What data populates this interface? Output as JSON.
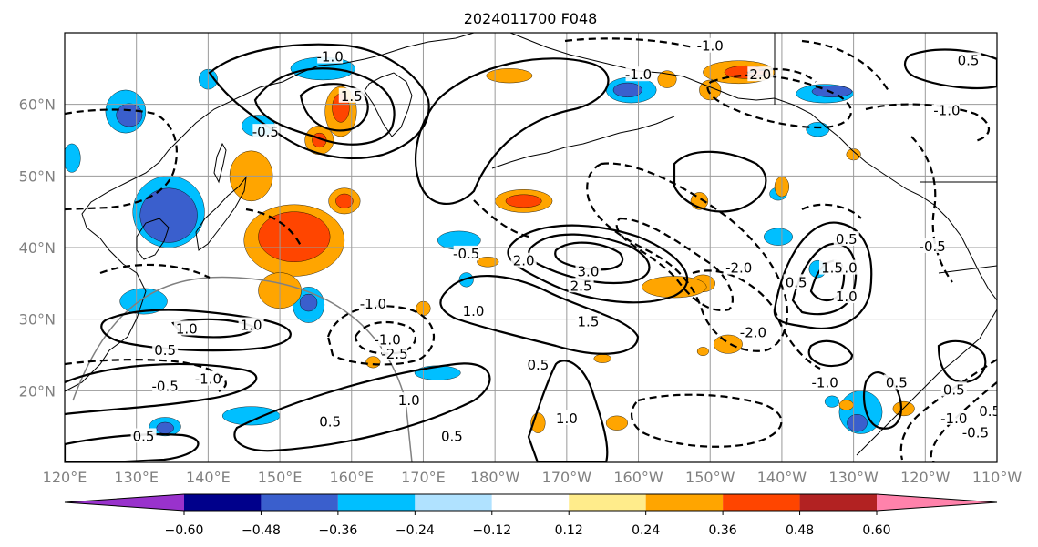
{
  "title": "2024011700 F048",
  "map": {
    "lat_range": [
      10,
      70
    ],
    "lon_range": [
      120,
      250
    ],
    "lat_ticks": [
      "20°N",
      "30°N",
      "40°N",
      "50°N",
      "60°N"
    ],
    "lon_ticks": [
      "120°E",
      "130°E",
      "140°E",
      "150°E",
      "160°E",
      "170°E",
      "180°W",
      "170°W",
      "160°W",
      "150°W",
      "140°W",
      "130°W",
      "120°W",
      "110°W"
    ],
    "gridlines": true,
    "projection": "PlateCarree"
  },
  "colorbar": {
    "orientation": "horizontal",
    "extend": "both",
    "tick_labels": [
      "−0.60",
      "−0.48",
      "−0.36",
      "−0.24",
      "−0.12",
      "0.12",
      "0.24",
      "0.36",
      "0.48",
      "0.60"
    ],
    "colors": [
      "#9932CC",
      "#00008B",
      "#3A5FCD",
      "#00BFFF",
      "#B0E2FF",
      "#FFFFFF",
      "#FFEC8B",
      "#FFA500",
      "#FF4500",
      "#B22222",
      "#FF82AB"
    ]
  },
  "contour_labels": [
    {
      "text": "-1.0",
      "lon": 157,
      "lat": 66.5
    },
    {
      "text": "-0.5",
      "lon": 148,
      "lat": 56
    },
    {
      "text": "-0.5",
      "lon": 176,
      "lat": 39
    },
    {
      "text": "-1.0",
      "lon": 163,
      "lat": 32
    },
    {
      "text": "-1.0",
      "lon": 165,
      "lat": 27
    },
    {
      "text": "-2.5",
      "lon": 166,
      "lat": 25
    },
    {
      "text": "-1.0",
      "lon": 140,
      "lat": 21.5
    },
    {
      "text": "-0.5",
      "lon": 134,
      "lat": 20.5
    },
    {
      "text": "-1.0",
      "lon": 200,
      "lat": 64
    },
    {
      "text": "-1.0",
      "lon": 210,
      "lat": 68
    },
    {
      "text": "-2.0",
      "lon": 214,
      "lat": 37
    },
    {
      "text": "-2.0",
      "lon": 216,
      "lat": 28
    },
    {
      "text": "-1.0",
      "lon": 226,
      "lat": 21
    },
    {
      "text": "-1.0",
      "lon": 243,
      "lat": 59
    },
    {
      "text": "-1.0",
      "lon": 244,
      "lat": 16
    },
    {
      "text": "-0.5",
      "lon": 247,
      "lat": 14
    },
    {
      "text": "-0.5",
      "lon": 241,
      "lat": 40
    },
    {
      "text": "1.0",
      "lon": 146,
      "lat": 29
    },
    {
      "text": "0.5",
      "lon": 134,
      "lat": 25.5
    },
    {
      "text": "1.0",
      "lon": 137,
      "lat": 28.5
    },
    {
      "text": "1.0",
      "lon": 168,
      "lat": 18.5
    },
    {
      "text": "0.5",
      "lon": 157,
      "lat": 15.5
    },
    {
      "text": "0.5",
      "lon": 174,
      "lat": 13.5
    },
    {
      "text": "0.5",
      "lon": 131,
      "lat": 13.5
    },
    {
      "text": "1.0",
      "lon": 177,
      "lat": 31
    },
    {
      "text": "1.5",
      "lon": 193,
      "lat": 29.5
    },
    {
      "text": "3.0",
      "lon": 193,
      "lat": 36.5
    },
    {
      "text": "2.5",
      "lon": 192,
      "lat": 34.5
    },
    {
      "text": "2.0",
      "lon": 184,
      "lat": 38
    },
    {
      "text": "1.0",
      "lon": 190,
      "lat": 16
    },
    {
      "text": "0.5",
      "lon": 186,
      "lat": 23.5
    },
    {
      "text": "2.0",
      "lon": 217,
      "lat": 64
    },
    {
      "text": "0.5",
      "lon": 246,
      "lat": 66
    },
    {
      "text": "0.5",
      "lon": 229,
      "lat": 41
    },
    {
      "text": "0.5",
      "lon": 222,
      "lat": 35
    },
    {
      "text": "2.0",
      "lon": 229,
      "lat": 37
    },
    {
      "text": "1.0",
      "lon": 229,
      "lat": 33
    },
    {
      "text": "1.5",
      "lon": 227,
      "lat": 37
    },
    {
      "text": "0.5",
      "lon": 236,
      "lat": 21
    },
    {
      "text": "0.5",
      "lon": 244,
      "lat": 20
    },
    {
      "text": "0.5",
      "lon": 249,
      "lat": 17
    },
    {
      "text": "1.5",
      "lon": 160,
      "lat": 61
    }
  ],
  "shaded_regions": [
    {
      "color": "#00BFFF",
      "lon": 156,
      "lat": 65,
      "rx": 4.5,
      "ry": 1.6
    },
    {
      "color": "#00BFFF",
      "lon": 140,
      "lat": 63.5,
      "rx": 1.3,
      "ry": 1.4
    },
    {
      "color": "#00BFFF",
      "lon": 128.5,
      "lat": 59,
      "rx": 2.8,
      "ry": 3
    },
    {
      "color": "#3A5FCD",
      "lon": 129,
      "lat": 58.5,
      "rx": 1.8,
      "ry": 1.6
    },
    {
      "color": "#00BFFF",
      "lon": 147,
      "lat": 57,
      "rx": 2.3,
      "ry": 1.5
    },
    {
      "color": "#00BFFF",
      "lon": 121,
      "lat": 52.5,
      "rx": 1.2,
      "ry": 2
    },
    {
      "color": "#00BFFF",
      "lon": 134.5,
      "lat": 45,
      "rx": 5,
      "ry": 5
    },
    {
      "color": "#3A5FCD",
      "lon": 134.5,
      "lat": 44.5,
      "rx": 4,
      "ry": 3.8
    },
    {
      "color": "#00BFFF",
      "lon": 131,
      "lat": 32.5,
      "rx": 3.3,
      "ry": 1.8
    },
    {
      "color": "#00BFFF",
      "lon": 154,
      "lat": 32,
      "rx": 2.2,
      "ry": 2.5
    },
    {
      "color": "#3A5FCD",
      "lon": 154,
      "lat": 32.3,
      "rx": 1.2,
      "ry": 1.2
    },
    {
      "color": "#00BFFF",
      "lon": 175,
      "lat": 41,
      "rx": 3,
      "ry": 1.3
    },
    {
      "color": "#00BFFF",
      "lon": 176,
      "lat": 35.5,
      "rx": 1,
      "ry": 1
    },
    {
      "color": "#00BFFF",
      "lon": 172,
      "lat": 22.5,
      "rx": 3.2,
      "ry": 1
    },
    {
      "color": "#00BFFF",
      "lon": 146,
      "lat": 16.5,
      "rx": 4,
      "ry": 1.3
    },
    {
      "color": "#00BFFF",
      "lon": 134,
      "lat": 15,
      "rx": 2.2,
      "ry": 1.3
    },
    {
      "color": "#3A5FCD",
      "lon": 134,
      "lat": 14.8,
      "rx": 1.2,
      "ry": 0.8
    },
    {
      "color": "#00BFFF",
      "lon": 199,
      "lat": 62,
      "rx": 3.5,
      "ry": 1.8
    },
    {
      "color": "#3A5FCD",
      "lon": 198.5,
      "lat": 62,
      "rx": 2,
      "ry": 1
    },
    {
      "color": "#00BFFF",
      "lon": 226,
      "lat": 61.5,
      "rx": 4,
      "ry": 1.3
    },
    {
      "color": "#3A5FCD",
      "lon": 227,
      "lat": 61.8,
      "rx": 2.8,
      "ry": 0.8
    },
    {
      "color": "#00BFFF",
      "lon": 225,
      "lat": 56.5,
      "rx": 1.6,
      "ry": 1
    },
    {
      "color": "#00BFFF",
      "lon": 219.5,
      "lat": 47.5,
      "rx": 1.2,
      "ry": 0.9
    },
    {
      "color": "#00BFFF",
      "lon": 219.5,
      "lat": 41.5,
      "rx": 2,
      "ry": 1.2
    },
    {
      "color": "#00BFFF",
      "lon": 225,
      "lat": 37,
      "rx": 1.2,
      "ry": 1.2
    },
    {
      "color": "#00BFFF",
      "lon": 231,
      "lat": 17,
      "rx": 3,
      "ry": 3
    },
    {
      "color": "#3A5FCD",
      "lon": 230.5,
      "lat": 15.5,
      "rx": 1.4,
      "ry": 1.2
    },
    {
      "color": "#00BFFF",
      "lon": 227,
      "lat": 18.5,
      "rx": 1,
      "ry": 0.8
    },
    {
      "color": "#FFA500",
      "lon": 158.5,
      "lat": 59,
      "rx": 2.2,
      "ry": 3.5
    },
    {
      "color": "#FF4500",
      "lon": 158.5,
      "lat": 59.5,
      "rx": 1.2,
      "ry": 2
    },
    {
      "color": "#FFA500",
      "lon": 155.5,
      "lat": 55,
      "rx": 2,
      "ry": 2
    },
    {
      "color": "#FF4500",
      "lon": 155.5,
      "lat": 55,
      "rx": 1,
      "ry": 1
    },
    {
      "color": "#FFA500",
      "lon": 182,
      "lat": 64,
      "rx": 3.2,
      "ry": 1
    },
    {
      "color": "#FFA500",
      "lon": 146,
      "lat": 50,
      "rx": 3,
      "ry": 3.5
    },
    {
      "color": "#FFA500",
      "lon": 152,
      "lat": 41,
      "rx": 7,
      "ry": 5
    },
    {
      "color": "#FF4500",
      "lon": 152,
      "lat": 41.5,
      "rx": 5,
      "ry": 3.5
    },
    {
      "color": "#FFA500",
      "lon": 150,
      "lat": 34,
      "rx": 3,
      "ry": 2.5
    },
    {
      "color": "#FFA500",
      "lon": 159,
      "lat": 46.5,
      "rx": 2.2,
      "ry": 1.8
    },
    {
      "color": "#FF4500",
      "lon": 159,
      "lat": 46.5,
      "rx": 1.2,
      "ry": 1
    },
    {
      "color": "#FFA500",
      "lon": 184,
      "lat": 46.5,
      "rx": 4,
      "ry": 1.6
    },
    {
      "color": "#FF4500",
      "lon": 184,
      "lat": 46.5,
      "rx": 2.5,
      "ry": 0.9
    },
    {
      "color": "#FFA500",
      "lon": 179,
      "lat": 38,
      "rx": 1.5,
      "ry": 0.7
    },
    {
      "color": "#FFA500",
      "lon": 170,
      "lat": 31.5,
      "rx": 1,
      "ry": 1
    },
    {
      "color": "#FFA500",
      "lon": 163,
      "lat": 24,
      "rx": 1,
      "ry": 0.8
    },
    {
      "color": "#FFA500",
      "lon": 204,
      "lat": 63.5,
      "rx": 1.3,
      "ry": 1.2
    },
    {
      "color": "#FFA500",
      "lon": 209,
      "lat": 35,
      "rx": 1.7,
      "ry": 1.2
    },
    {
      "color": "#FFA500",
      "lon": 214,
      "lat": 64.5,
      "rx": 5,
      "ry": 1.6
    },
    {
      "color": "#FF4500",
      "lon": 215,
      "lat": 64.5,
      "rx": 3,
      "ry": 0.9
    },
    {
      "color": "#FFA500",
      "lon": 210,
      "lat": 62,
      "rx": 1.5,
      "ry": 1.4
    },
    {
      "color": "#FFA500",
      "lon": 208.5,
      "lat": 46.5,
      "rx": 1.2,
      "ry": 1.2
    },
    {
      "color": "#FFA500",
      "lon": 205,
      "lat": 34.5,
      "rx": 4.5,
      "ry": 1.5
    },
    {
      "color": "#FFA500",
      "lon": 220,
      "lat": 48.5,
      "rx": 1,
      "ry": 1.4
    },
    {
      "color": "#FFA500",
      "lon": 212.5,
      "lat": 26.5,
      "rx": 2,
      "ry": 1.3
    },
    {
      "color": "#FFA500",
      "lon": 195,
      "lat": 24.5,
      "rx": 1.2,
      "ry": 0.6
    },
    {
      "color": "#FFA500",
      "lon": 209,
      "lat": 25.5,
      "rx": 0.8,
      "ry": 0.6
    },
    {
      "color": "#FFA500",
      "lon": 197,
      "lat": 15.5,
      "rx": 1.5,
      "ry": 1
    },
    {
      "color": "#FFA500",
      "lon": 186,
      "lat": 15.5,
      "rx": 1,
      "ry": 1.4
    },
    {
      "color": "#FFA500",
      "lon": 230,
      "lat": 53,
      "rx": 1,
      "ry": 0.8
    },
    {
      "color": "#FFA500",
      "lon": 229,
      "lat": 18,
      "rx": 1,
      "ry": 0.7
    },
    {
      "color": "#FFA500",
      "lon": 237,
      "lat": 17.5,
      "rx": 1.5,
      "ry": 1
    }
  ]
}
